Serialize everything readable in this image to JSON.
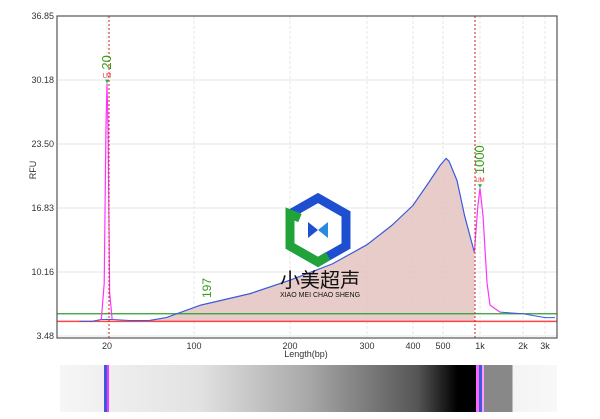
{
  "chart_data": {
    "type": "line",
    "xlabel": "Length(bp)",
    "ylabel": "RFU",
    "x_scale": "log-piecewise",
    "x_ticks": [
      {
        "value": 20,
        "label": "20"
      },
      {
        "value": 100,
        "label": "100"
      },
      {
        "value": 200,
        "label": "200"
      },
      {
        "value": 300,
        "label": "300"
      },
      {
        "value": 400,
        "label": "400"
      },
      {
        "value": 500,
        "label": "500"
      },
      {
        "value": 1000,
        "label": "1k"
      },
      {
        "value": 2000,
        "label": "2k"
      },
      {
        "value": 3000,
        "label": "3k"
      }
    ],
    "y_ticks": [
      "36.85",
      "30.18",
      "23.50",
      "16.83",
      "10.16",
      "3.48"
    ],
    "ylim": [
      3.48,
      36.85
    ],
    "grid": true,
    "lower_marker": {
      "bp": 20,
      "rfu": 29.8,
      "label": "20",
      "tag": "LM"
    },
    "upper_marker": {
      "bp": 1000,
      "rfu": 18.9,
      "label": "1000",
      "tag": "UM"
    },
    "peak_labels": [
      {
        "bp": 110,
        "label": "197"
      }
    ],
    "baseline_rfu": 5.0,
    "threshold_rfu": 5.8,
    "smear_series": [
      [
        44,
        5.1
      ],
      [
        60,
        5.4
      ],
      [
        105,
        6.7
      ],
      [
        150,
        7.9
      ],
      [
        200,
        9.3
      ],
      [
        250,
        11.0
      ],
      [
        300,
        13.0
      ],
      [
        350,
        15.0
      ],
      [
        400,
        17.1
      ],
      [
        450,
        19.5
      ],
      [
        490,
        21.3
      ],
      [
        530,
        22.0
      ],
      [
        560,
        21.7
      ],
      [
        650,
        19.7
      ],
      [
        750,
        16.0
      ],
      [
        900,
        12.2
      ]
    ],
    "trace": [
      [
        12,
        5.0
      ],
      [
        15,
        5.0
      ],
      [
        18,
        5.2
      ],
      [
        19,
        9
      ],
      [
        19.6,
        25
      ],
      [
        20,
        29.8
      ],
      [
        20.4,
        25
      ],
      [
        21,
        8
      ],
      [
        22,
        5.2
      ],
      [
        30,
        5.1
      ],
      [
        44,
        5.1
      ]
    ],
    "upper_trace": [
      [
        900,
        12.2
      ],
      [
        960,
        17
      ],
      [
        1000,
        18.9
      ],
      [
        1050,
        16
      ],
      [
        1120,
        9
      ],
      [
        1175,
        6.7
      ],
      [
        1380,
        5.97
      ],
      [
        2000,
        5.8
      ],
      [
        3000,
        5.4
      ],
      [
        3600,
        5.4
      ]
    ],
    "colors": {
      "trace": "#3b5bdb",
      "marker_trace": "#ff33ff",
      "fill": "#e3c3c0",
      "baseline": "#ff4444",
      "threshold": "#2e9e2e",
      "marker_line": "#cc2222",
      "label": "#3a9a1a"
    }
  },
  "watermark": {
    "title": "小美超声",
    "subtitle": "XIAO MEI CHAO SHENG"
  }
}
